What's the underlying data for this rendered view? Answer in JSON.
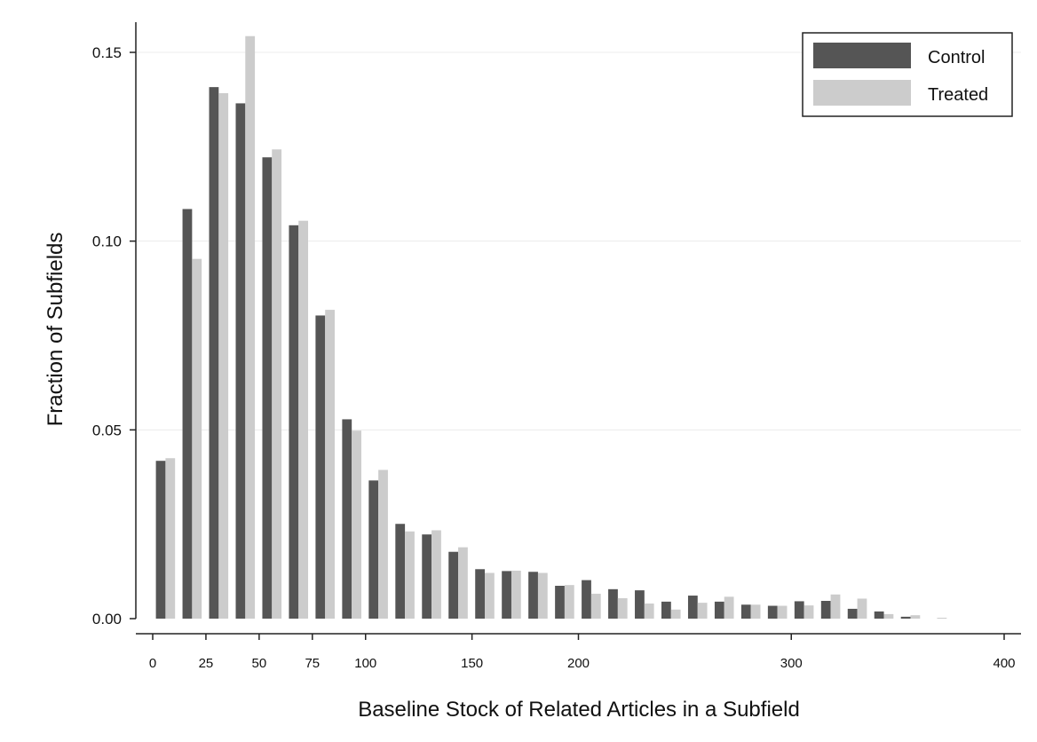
{
  "chart_data": {
    "type": "bar",
    "title": "",
    "xlabel": "Baseline Stock of Related Articles in a Subfield",
    "ylabel": "Fraction of Subfields",
    "xlim": [
      0,
      400
    ],
    "ylim": [
      0,
      0.16
    ],
    "x_ticks": [
      0,
      25,
      50,
      75,
      100,
      150,
      200,
      300,
      400
    ],
    "y_ticks": [
      "0.00",
      "0.05",
      "0.10",
      "0.15"
    ],
    "grid": true,
    "legend_position": "top-right",
    "colors": {
      "Control": "#555555",
      "Treated": "#cccccc"
    },
    "series": [
      {
        "name": "Control",
        "x": [
          0,
          12.5,
          25,
          37.5,
          50,
          62.5,
          75,
          87.5,
          100,
          112.5,
          125,
          137.5,
          150,
          162.5,
          175,
          187.5,
          200,
          212.5,
          225,
          237.5,
          250,
          262.5,
          275,
          287.5,
          300,
          312.5,
          325,
          337.5,
          350,
          362.5
        ],
        "values": [
          0.0418,
          0.1085,
          0.1408,
          0.1365,
          0.1222,
          0.1042,
          0.0803,
          0.0528,
          0.0366,
          0.0251,
          0.0223,
          0.0177,
          0.0131,
          0.0126,
          0.0124,
          0.0087,
          0.0102,
          0.0078,
          0.0075,
          0.0045,
          0.0061,
          0.0045,
          0.0037,
          0.0034,
          0.0046,
          0.0047,
          0.0026,
          0.0019,
          0.0005,
          0.0
        ]
      },
      {
        "name": "Treated",
        "x": [
          0,
          12.5,
          25,
          37.5,
          50,
          62.5,
          75,
          87.5,
          100,
          112.5,
          125,
          137.5,
          150,
          162.5,
          175,
          187.5,
          200,
          212.5,
          225,
          237.5,
          250,
          262.5,
          275,
          287.5,
          300,
          312.5,
          325,
          337.5,
          350,
          362.5
        ],
        "values": [
          0.0425,
          0.0953,
          0.1392,
          0.1543,
          0.1243,
          0.1054,
          0.0818,
          0.0498,
          0.0394,
          0.0231,
          0.0234,
          0.0189,
          0.0121,
          0.0127,
          0.0121,
          0.0089,
          0.0066,
          0.0054,
          0.004,
          0.0024,
          0.0042,
          0.0058,
          0.0037,
          0.0034,
          0.0035,
          0.0064,
          0.0053,
          0.0012,
          0.0009,
          0.0002
        ]
      }
    ]
  }
}
